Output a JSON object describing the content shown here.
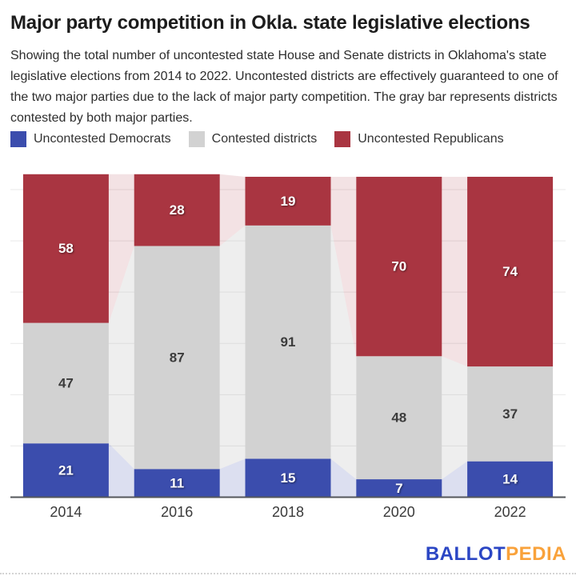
{
  "header": {
    "title": "Major party competition in Okla. state legislative elections",
    "subtitle": "Showing the total number of uncontested state House and Senate districts in Oklahoma's state legislative elections from 2014 to 2022. Uncontested districts are effectively guaranteed to one of the two major parties due to the lack of major party competition. The gray bar represents districts contested by both major parties."
  },
  "legend": {
    "items": [
      {
        "label": "Uncontested Democrats",
        "color": "#3b4dad"
      },
      {
        "label": "Contested districts",
        "color": "#d2d2d2"
      },
      {
        "label": "Uncontested Republicans",
        "color": "#a93541"
      }
    ]
  },
  "chart_data": {
    "type": "bar",
    "stacked": true,
    "title": "Major party competition in Okla. state legislative elections",
    "categories": [
      "2014",
      "2016",
      "2018",
      "2020",
      "2022"
    ],
    "series": [
      {
        "name": "Uncontested Democrats",
        "color": "#3b4dad",
        "connector_color": "rgba(59,77,173,0.18)",
        "label_style": "light",
        "values": [
          21,
          11,
          15,
          7,
          14
        ]
      },
      {
        "name": "Contested districts",
        "color": "#d2d2d2",
        "connector_color": "rgba(178,178,178,0.22)",
        "label_style": "dark",
        "values": [
          47,
          87,
          91,
          48,
          37
        ]
      },
      {
        "name": "Uncontested Republicans",
        "color": "#a93541",
        "connector_color": "rgba(169,53,65,0.14)",
        "label_style": "light",
        "values": [
          58,
          28,
          19,
          70,
          74
        ]
      }
    ],
    "totals": [
      126,
      126,
      125,
      125,
      125
    ],
    "gridlines": [
      20,
      40,
      60,
      80,
      100,
      120
    ],
    "ylim": [
      0,
      126
    ],
    "grid": true,
    "legend_position": "top",
    "colors": {
      "gridline": "#e9e9e9",
      "axis_line": "#54575b"
    }
  },
  "footer": {
    "logo": {
      "part1": "BALLOT",
      "part2": "PEDIA",
      "color1": "#2b46c4",
      "color2": "#f9a23b"
    }
  }
}
